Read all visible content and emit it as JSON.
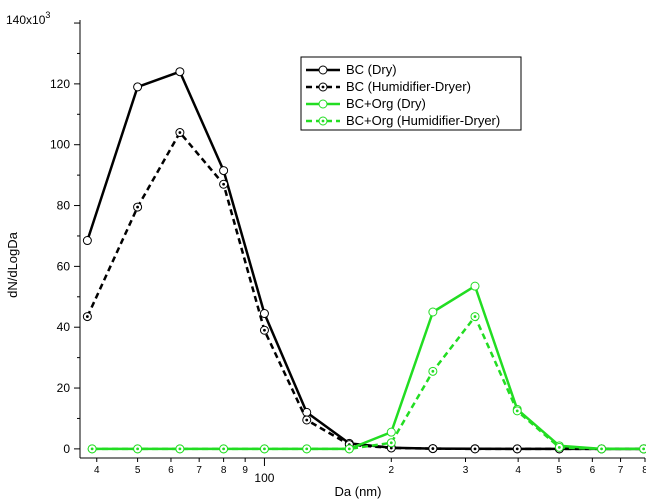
{
  "chart_data": {
    "type": "line",
    "xlabel": "Da (nm)",
    "ylabel": "dN/dLogDa",
    "y_exponent_label": "140x10",
    "y_exponent_sup": "3",
    "x_scale": "log",
    "xlim": [
      36.5,
      800
    ],
    "ylim": [
      -3000,
      141000
    ],
    "y_ticks": [
      0,
      20000,
      40000,
      60000,
      80000,
      100000,
      120000,
      140000
    ],
    "y_tick_labels": [
      "0",
      "20",
      "40",
      "60",
      "80",
      "100",
      "120",
      ""
    ],
    "x_major_ticks": [
      100
    ],
    "x_major_labels": [
      "100"
    ],
    "x_minor_ticks": [
      40,
      50,
      60,
      70,
      80,
      90,
      200,
      300,
      400,
      500,
      600,
      700,
      800
    ],
    "x_minor_labels": [
      "4",
      "5",
      "6",
      "7",
      "8",
      "9",
      "2",
      "3",
      "4",
      "5",
      "6",
      "7",
      "8"
    ],
    "legend_position": "top-center",
    "series": [
      {
        "name": "BC (Dry)",
        "color": "#000000",
        "dashed": false,
        "x": [
          38,
          50,
          63,
          80,
          100,
          126,
          159,
          200,
          251,
          316,
          398,
          501,
          631,
          794
        ],
        "y": [
          68500,
          119000,
          124000,
          91500,
          44500,
          12000,
          1800,
          400,
          100,
          50,
          0,
          0,
          0,
          0
        ]
      },
      {
        "name": "BC (Humidifier-Dryer)",
        "color": "#000000",
        "dashed": true,
        "x": [
          38,
          50,
          63,
          80,
          100,
          126,
          159,
          200,
          251,
          316,
          398,
          501,
          631,
          794
        ],
        "y": [
          43500,
          79500,
          104000,
          87000,
          39000,
          9500,
          1400,
          300,
          100,
          0,
          0,
          0,
          0,
          0
        ]
      },
      {
        "name": "BC+Org (Dry)",
        "color": "#22dd22",
        "dashed": false,
        "x": [
          39,
          50,
          63,
          80,
          100,
          126,
          159,
          200,
          251,
          316,
          398,
          501,
          631,
          794
        ],
        "y": [
          0,
          0,
          0,
          0,
          0,
          0,
          0,
          5500,
          45000,
          53500,
          13000,
          1000,
          0,
          0
        ]
      },
      {
        "name": "BC+Org (Humidifier-Dryer)",
        "color": "#22dd22",
        "dashed": true,
        "x": [
          39,
          50,
          63,
          80,
          100,
          126,
          159,
          200,
          251,
          316,
          398,
          501,
          631,
          794
        ],
        "y": [
          0,
          0,
          0,
          0,
          0,
          0,
          0,
          2000,
          25500,
          43500,
          12500,
          500,
          0,
          0
        ]
      }
    ]
  }
}
